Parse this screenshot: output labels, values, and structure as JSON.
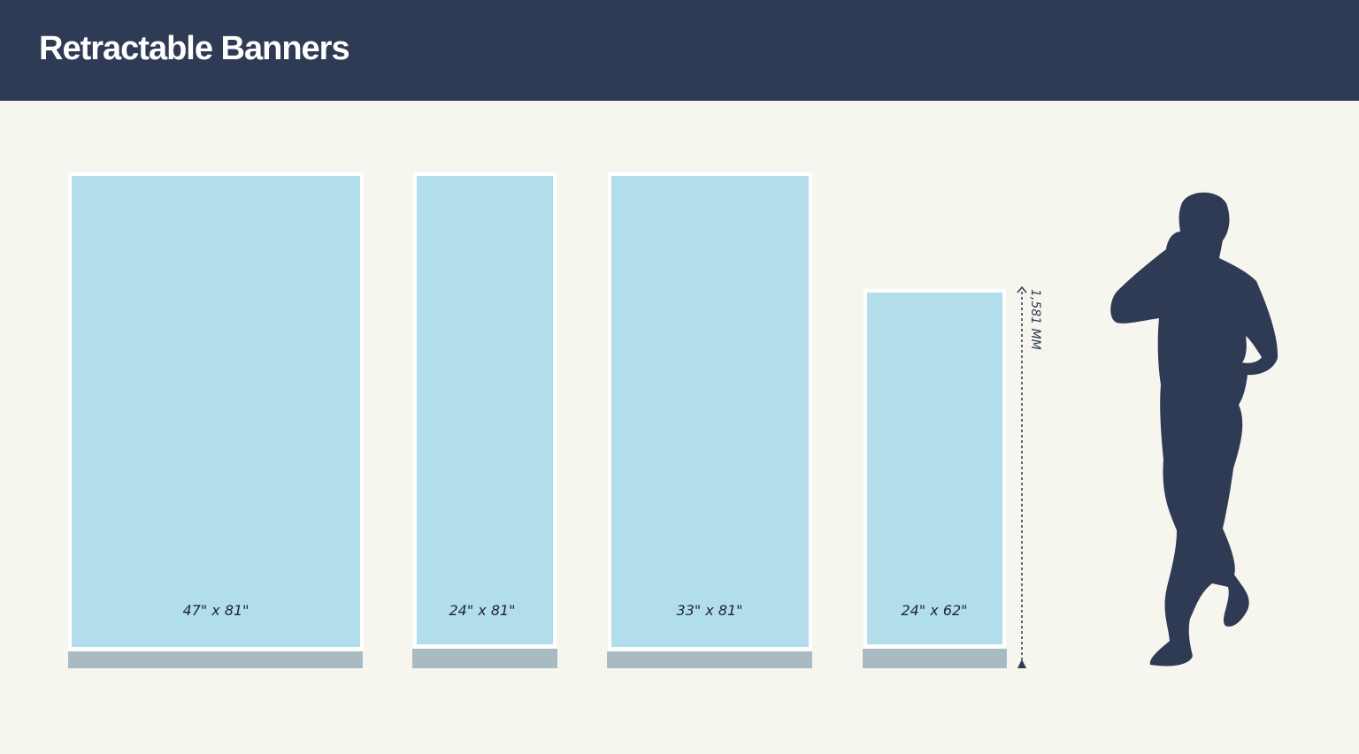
{
  "header": {
    "title": "Retractable Banners"
  },
  "banners": [
    {
      "label": "47\" x 81\""
    },
    {
      "label": "24\" x 81\""
    },
    {
      "label": "33\" x 81\""
    },
    {
      "label": "24\" x 62\""
    }
  ],
  "dimension": {
    "label": "1,581 MM"
  }
}
